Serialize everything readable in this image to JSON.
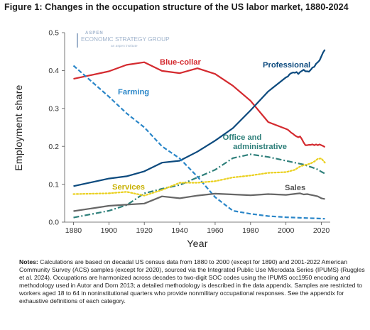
{
  "title": "Figure 1: Changes in the occupation structure of the US labor market, 1880-2024",
  "logo": {
    "line1": "ASPEN",
    "line2": "ECONOMIC STRATEGY GROUP",
    "line3": "an aspen institute"
  },
  "notes": {
    "label": "Notes:",
    "text": " Calculations are based on decadal US census data from 1880 to 2000 (except for 1890) and 2001-2022 American Community Survey (ACS) samples (except for 2020), sourced via the Integrated Public Use Microdata Series (IPUMS) (Ruggles et al. 2024). Occupations are harmonized across decades to two-digit SOC codes using the IPUMS occ1950 encoding and methodology used in Autor and Dorn 2013; a detailed methodology is described in the data appendix. Samples are restricted to workers aged 18 to 64 in noninstitutional quarters who provide nonmilitary occupational responses. See the appendix for exhaustive definitions of each category."
  },
  "chart_data": {
    "type": "line",
    "xlabel": "Year",
    "ylabel": "Employment share",
    "xlim": [
      1875,
      2025
    ],
    "ylim": [
      0,
      0.5
    ],
    "xticks": [
      1880,
      1900,
      1920,
      1940,
      1960,
      1980,
      2000,
      2020
    ],
    "yticks": [
      "0.0",
      "0.1",
      "0.2",
      "0.3",
      "0.4",
      "0.5"
    ],
    "grid": false,
    "legend": "inline labels",
    "series": [
      {
        "name": "Blue-collar",
        "color": "#d42a2f",
        "style": "solid",
        "x": [
          1880,
          1900,
          1910,
          1920,
          1930,
          1940,
          1950,
          1960,
          1970,
          1980,
          1990,
          2000,
          2001,
          2002,
          2003,
          2004,
          2005,
          2006,
          2007,
          2008,
          2009,
          2010,
          2011,
          2012,
          2013,
          2014,
          2015,
          2016,
          2017,
          2018,
          2019,
          2021,
          2022
        ],
        "y": [
          0.378,
          0.398,
          0.415,
          0.422,
          0.399,
          0.393,
          0.406,
          0.391,
          0.36,
          0.32,
          0.264,
          0.246,
          0.244,
          0.24,
          0.236,
          0.233,
          0.229,
          0.226,
          0.224,
          0.226,
          0.219,
          0.21,
          0.203,
          0.203,
          0.204,
          0.204,
          0.205,
          0.203,
          0.205,
          0.203,
          0.205,
          0.201,
          0.198
        ]
      },
      {
        "name": "Professional",
        "color": "#0c4a7e",
        "style": "solid",
        "x": [
          1880,
          1900,
          1910,
          1920,
          1930,
          1940,
          1950,
          1960,
          1970,
          1980,
          1990,
          2000,
          2001,
          2002,
          2003,
          2004,
          2005,
          2006,
          2007,
          2008,
          2009,
          2010,
          2011,
          2012,
          2013,
          2014,
          2015,
          2016,
          2017,
          2018,
          2019,
          2021,
          2022
        ],
        "y": [
          0.095,
          0.115,
          0.121,
          0.134,
          0.157,
          0.162,
          0.186,
          0.215,
          0.248,
          0.295,
          0.345,
          0.382,
          0.384,
          0.39,
          0.393,
          0.395,
          0.394,
          0.396,
          0.391,
          0.396,
          0.399,
          0.402,
          0.398,
          0.398,
          0.397,
          0.402,
          0.408,
          0.41,
          0.418,
          0.422,
          0.427,
          0.448,
          0.455
        ]
      },
      {
        "name": "Farming",
        "color": "#2a86c8",
        "style": "dash",
        "x": [
          1880,
          1900,
          1910,
          1920,
          1930,
          1940,
          1950,
          1960,
          1970,
          1980,
          1990,
          2000,
          2010,
          2022
        ],
        "y": [
          0.413,
          0.331,
          0.287,
          0.25,
          0.2,
          0.168,
          0.12,
          0.066,
          0.03,
          0.022,
          0.016,
          0.013,
          0.011,
          0.009
        ]
      },
      {
        "name": "Office and administrative",
        "color": "#2e7f7a",
        "style": "dashdot",
        "x": [
          1880,
          1900,
          1910,
          1920,
          1930,
          1940,
          1950,
          1960,
          1970,
          1980,
          1990,
          2000,
          2005,
          2008,
          2010,
          2013,
          2015,
          2018,
          2020,
          2022
        ],
        "y": [
          0.012,
          0.03,
          0.045,
          0.076,
          0.088,
          0.098,
          0.118,
          0.138,
          0.169,
          0.179,
          0.172,
          0.162,
          0.157,
          0.154,
          0.152,
          0.147,
          0.144,
          0.139,
          0.133,
          0.128
        ]
      },
      {
        "name": "Services",
        "color": "#ead01e",
        "style": "dot",
        "x": [
          1880,
          1900,
          1910,
          1920,
          1930,
          1940,
          1950,
          1960,
          1970,
          1980,
          1990,
          2000,
          2005,
          2008,
          2010,
          2012,
          2014,
          2016,
          2018,
          2020,
          2022
        ],
        "y": [
          0.074,
          0.076,
          0.08,
          0.07,
          0.085,
          0.104,
          0.104,
          0.108,
          0.118,
          0.123,
          0.13,
          0.132,
          0.138,
          0.147,
          0.15,
          0.152,
          0.155,
          0.16,
          0.167,
          0.168,
          0.157
        ]
      },
      {
        "name": "Sales",
        "color": "#666666",
        "style": "solid",
        "x": [
          1880,
          1900,
          1910,
          1920,
          1930,
          1940,
          1950,
          1960,
          1970,
          1980,
          1990,
          2000,
          2004,
          2006,
          2008,
          2010,
          2012,
          2014,
          2016,
          2018,
          2020,
          2022
        ],
        "y": [
          0.029,
          0.043,
          0.046,
          0.049,
          0.068,
          0.063,
          0.07,
          0.075,
          0.073,
          0.071,
          0.074,
          0.072,
          0.074,
          0.075,
          0.076,
          0.073,
          0.074,
          0.072,
          0.07,
          0.068,
          0.063,
          0.061
        ]
      }
    ]
  }
}
